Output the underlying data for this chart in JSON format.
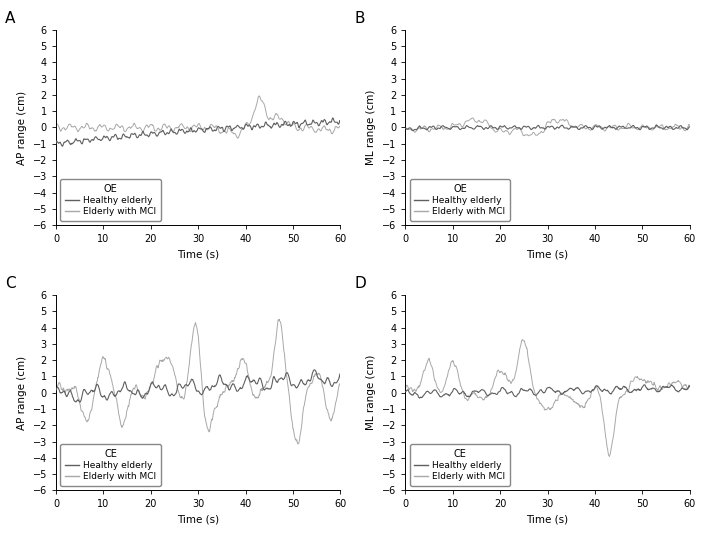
{
  "panels": [
    "A",
    "B",
    "C",
    "D"
  ],
  "ylim": [
    -6,
    6
  ],
  "xlim": [
    0,
    60
  ],
  "yticks": [
    -6,
    -5,
    -4,
    -3,
    -2,
    -1,
    0,
    1,
    2,
    3,
    4,
    5,
    6
  ],
  "xticks": [
    0,
    10,
    20,
    30,
    40,
    50,
    60
  ],
  "ylabels": [
    "AP range (cm)",
    "ML range (cm)",
    "AP range (cm)",
    "ML range (cm)"
  ],
  "xlabel": "Time (s)",
  "legend_titles": [
    "OE",
    "OE",
    "CE",
    "CE"
  ],
  "healthy_color": "#606060",
  "mci_color": "#a8a8a8",
  "healthy_label": "Healthy elderly",
  "mci_label": "Elderly with MCI"
}
